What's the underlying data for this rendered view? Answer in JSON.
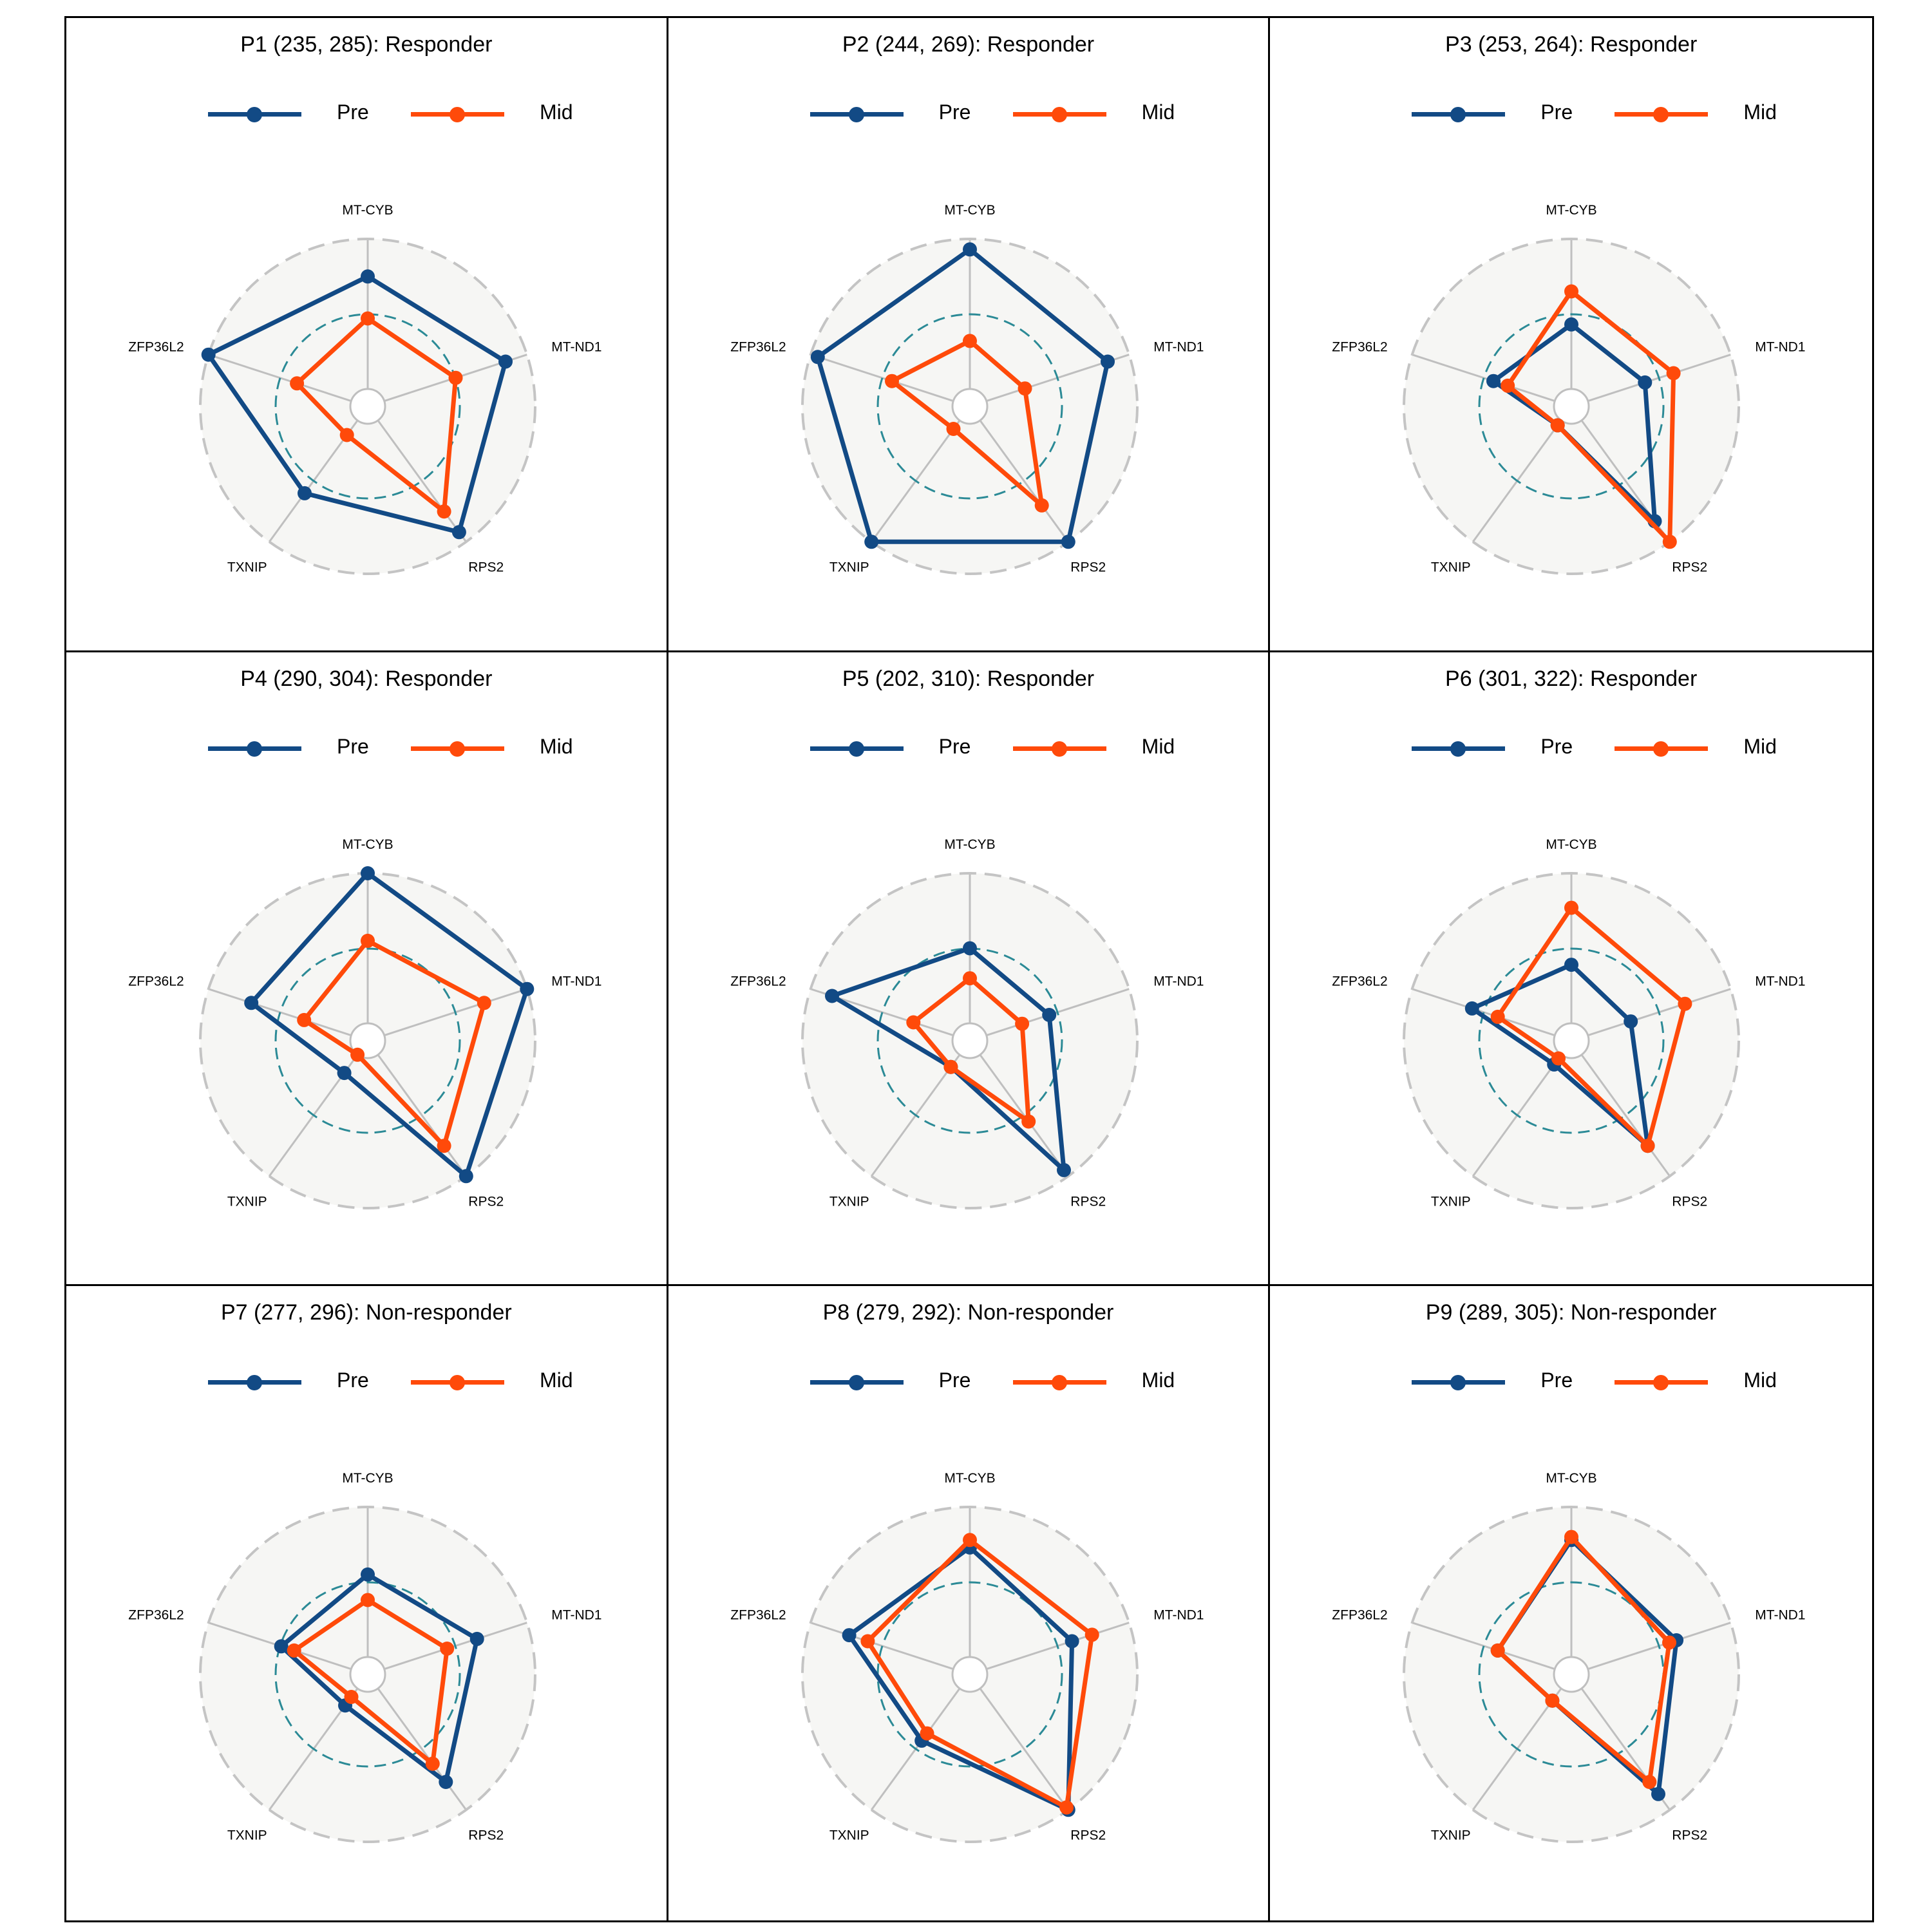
{
  "colors": {
    "pre": "#124a85",
    "mid": "#ff4a0a",
    "background_disc": "#f6f6f4",
    "outer_ring": "#c4c4c4",
    "inner_ring": "#2b8a96",
    "spokes": "#bfbfbf"
  },
  "legend": {
    "pre": "Pre",
    "mid": "Mid"
  },
  "chart_data": [
    {
      "type": "radar",
      "title": "P1 (235, 285): Responder",
      "axes": [
        "MT-CYB",
        "MT-ND1",
        "RPS2",
        "TXNIP",
        "ZFP36L2"
      ],
      "series": [
        {
          "name": "Pre",
          "values": [
            0.75,
            0.85,
            0.92,
            0.6,
            1.0
          ]
        },
        {
          "name": "Mid",
          "values": [
            0.47,
            0.5,
            0.75,
            0.12,
            0.38
          ]
        }
      ]
    },
    {
      "type": "radar",
      "title": "P2 (244, 269): Responder",
      "axes": [
        "MT-CYB",
        "MT-ND1",
        "RPS2",
        "TXNIP",
        "ZFP36L2"
      ],
      "series": [
        {
          "name": "Pre",
          "values": [
            0.93,
            0.85,
            1.0,
            1.0,
            0.95
          ]
        },
        {
          "name": "Mid",
          "values": [
            0.32,
            0.27,
            0.7,
            0.07,
            0.43
          ]
        }
      ]
    },
    {
      "type": "radar",
      "title": "P3 (253, 264): Responder",
      "axes": [
        "MT-CYB",
        "MT-ND1",
        "RPS2",
        "TXNIP",
        "ZFP36L2"
      ],
      "series": [
        {
          "name": "Pre",
          "values": [
            0.43,
            0.4,
            0.83,
            0.04,
            0.43
          ]
        },
        {
          "name": "Mid",
          "values": [
            0.65,
            0.6,
            1.0,
            0.04,
            0.33
          ]
        }
      ]
    },
    {
      "type": "radar",
      "title": "P4 (290, 304): Responder",
      "axes": [
        "MT-CYB",
        "MT-ND1",
        "RPS2",
        "TXNIP",
        "ZFP36L2"
      ],
      "series": [
        {
          "name": "Pre",
          "values": [
            1.0,
            1.0,
            1.0,
            0.15,
            0.7
          ]
        },
        {
          "name": "Mid",
          "values": [
            0.55,
            0.7,
            0.75,
            0.0,
            0.33
          ]
        }
      ]
    },
    {
      "type": "radar",
      "title": "P5 (202, 310): Responder",
      "axes": [
        "MT-CYB",
        "MT-ND1",
        "RPS2",
        "TXNIP",
        "ZFP36L2"
      ],
      "series": [
        {
          "name": "Pre",
          "values": [
            0.5,
            0.44,
            0.95,
            0.1,
            0.85
          ]
        },
        {
          "name": "Mid",
          "values": [
            0.3,
            0.25,
            0.55,
            0.1,
            0.28
          ]
        }
      ]
    },
    {
      "type": "radar",
      "title": "P6 (301, 322): Responder",
      "axes": [
        "MT-CYB",
        "MT-ND1",
        "RPS2",
        "TXNIP",
        "ZFP36L2"
      ],
      "series": [
        {
          "name": "Pre",
          "values": [
            0.39,
            0.3,
            0.75,
            0.08,
            0.58
          ]
        },
        {
          "name": "Mid",
          "values": [
            0.77,
            0.68,
            0.75,
            0.03,
            0.4
          ]
        }
      ]
    },
    {
      "type": "radar",
      "title": "P7 (277, 296): Non-responder",
      "axes": [
        "MT-CYB",
        "MT-ND1",
        "RPS2",
        "TXNIP",
        "ZFP36L2"
      ],
      "series": [
        {
          "name": "Pre",
          "values": [
            0.55,
            0.65,
            0.77,
            0.14,
            0.49
          ]
        },
        {
          "name": "Mid",
          "values": [
            0.38,
            0.44,
            0.62,
            0.07,
            0.4
          ]
        }
      ]
    },
    {
      "type": "radar",
      "title": "P8 (279, 292): Non-responder",
      "axes": [
        "MT-CYB",
        "MT-ND1",
        "RPS2",
        "TXNIP",
        "ZFP36L2"
      ],
      "series": [
        {
          "name": "Pre",
          "values": [
            0.73,
            0.6,
            1.0,
            0.43,
            0.73
          ]
        },
        {
          "name": "Mid",
          "values": [
            0.78,
            0.74,
            0.98,
            0.37,
            0.6
          ]
        }
      ]
    },
    {
      "type": "radar",
      "title": "P9 (289, 305): Non-responder",
      "axes": [
        "MT-CYB",
        "MT-ND1",
        "RPS2",
        "TXNIP",
        "ZFP36L2"
      ],
      "series": [
        {
          "name": "Pre",
          "values": [
            0.78,
            0.62,
            0.87,
            0.1,
            0.4
          ]
        },
        {
          "name": "Mid",
          "values": [
            0.8,
            0.57,
            0.77,
            0.1,
            0.4
          ]
        }
      ]
    }
  ]
}
